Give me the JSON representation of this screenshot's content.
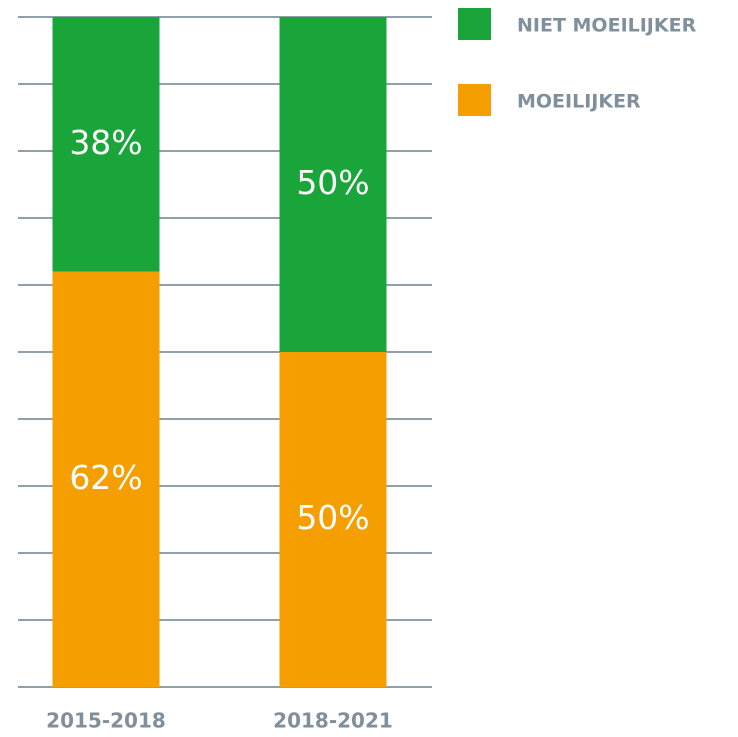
{
  "chart_data": {
    "type": "stacked_bar",
    "categories": [
      "2015-2018",
      "2018-2021"
    ],
    "series": [
      {
        "name": "NIET MOEILIJKER",
        "color": "#1aa53a",
        "values": [
          38,
          50
        ],
        "value_labels": [
          "38%",
          "50%"
        ]
      },
      {
        "name": "MOEILIJKER",
        "color": "#f59e00",
        "values": [
          62,
          50
        ],
        "value_labels": [
          "62%",
          "50%"
        ]
      }
    ],
    "ylim": [
      0,
      100
    ],
    "yticks": [
      0,
      10,
      20,
      30,
      40,
      50,
      60,
      70,
      80,
      90,
      100
    ],
    "grid": true
  }
}
